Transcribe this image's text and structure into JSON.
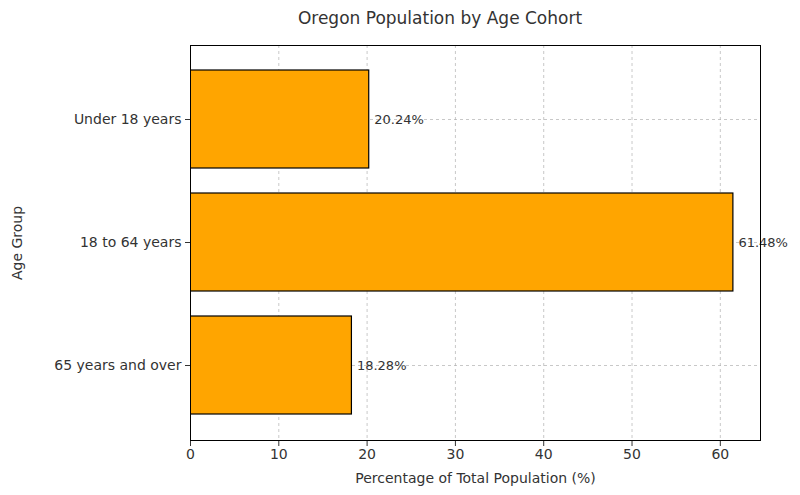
{
  "chart_data": {
    "type": "bar",
    "orientation": "horizontal",
    "title": "Oregon Population by Age Cohort",
    "x_label": "Percentage of Total Population (%)",
    "y_label": "Age Group",
    "categories": [
      "Under 18 years",
      "18 to 64 years",
      "65 years and over"
    ],
    "values": [
      20.24,
      61.48,
      18.28
    ],
    "value_labels": [
      "20.24%",
      "61.48%",
      "18.28%"
    ],
    "data_labels": true,
    "color": "#ffa500",
    "xlim": [
      0,
      64.55
    ],
    "xticks": [
      0,
      10,
      20,
      30,
      40,
      50,
      60
    ],
    "grid": true
  }
}
